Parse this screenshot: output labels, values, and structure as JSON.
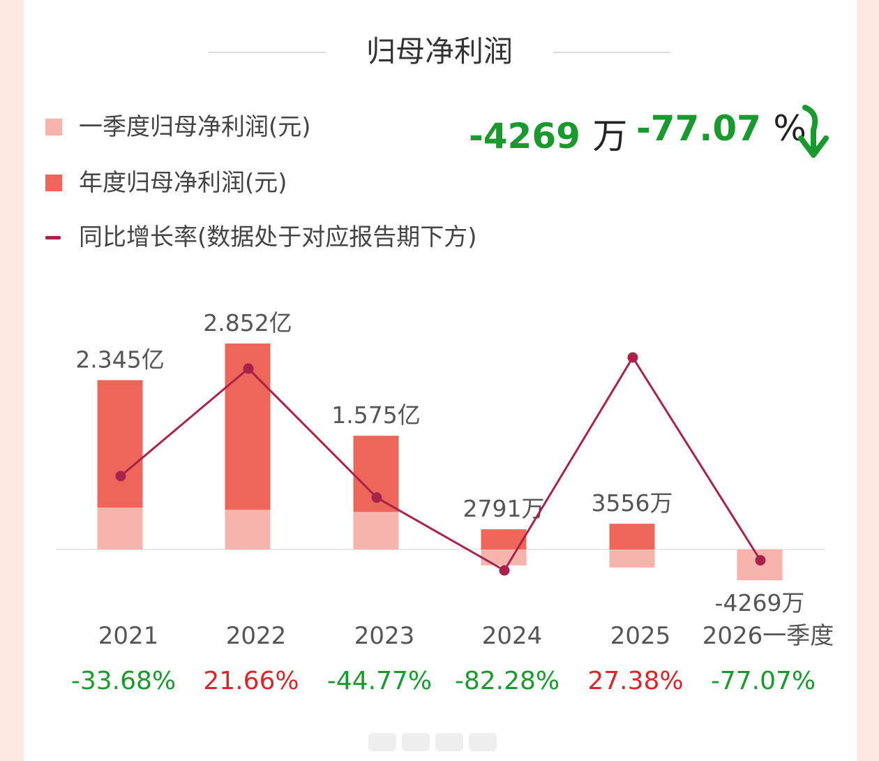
{
  "title": "归母净利润",
  "legend": [
    {
      "label": "一季度归母净利润(元)",
      "color": "#f7b4ad",
      "kind": "bar"
    },
    {
      "label": "年度归母净利润(元)",
      "color": "#ee655a",
      "kind": "bar"
    },
    {
      "label": "同比增长率(数据处于对应报告期下方)",
      "color": "#a8234a",
      "kind": "line"
    }
  ],
  "headline": {
    "value": "-4269",
    "value_unit": "万",
    "pct": "-77.07",
    "pct_unit": "%",
    "arrow_icon": "down-arrow-icon",
    "color": "#1a9a2e"
  },
  "colors": {
    "positive": "#d6282b",
    "negative": "#1a9a2e",
    "annual": "#ee655a",
    "quarter": "#f7b4ad",
    "line": "#a8234a"
  },
  "chart_data": {
    "type": "bar",
    "categories": [
      "2021",
      "2022",
      "2023",
      "2024",
      "2025",
      "2026一季度"
    ],
    "series": [
      {
        "name": "年度归母净利润(元)",
        "values": [
          234500000,
          285200000,
          157500000,
          27910000,
          35560000,
          null
        ]
      },
      {
        "name": "一季度归母净利润(元)",
        "values": [
          58000000,
          55000000,
          52000000,
          -22000000,
          -25000000,
          -42690000
        ]
      }
    ],
    "value_labels": [
      "2.345亿",
      "2.852亿",
      "1.575亿",
      "2791万",
      "3556万",
      "-4269万"
    ],
    "growth": {
      "name": "同比增长率",
      "values": [
        -33.68,
        21.66,
        -44.77,
        -82.28,
        27.38,
        -77.07
      ],
      "labels": [
        "-33.68%",
        "21.66%",
        "-44.77%",
        "-82.28%",
        "27.38%",
        "-77.07%"
      ]
    },
    "ylim": [
      -50000000,
      300000000
    ]
  }
}
